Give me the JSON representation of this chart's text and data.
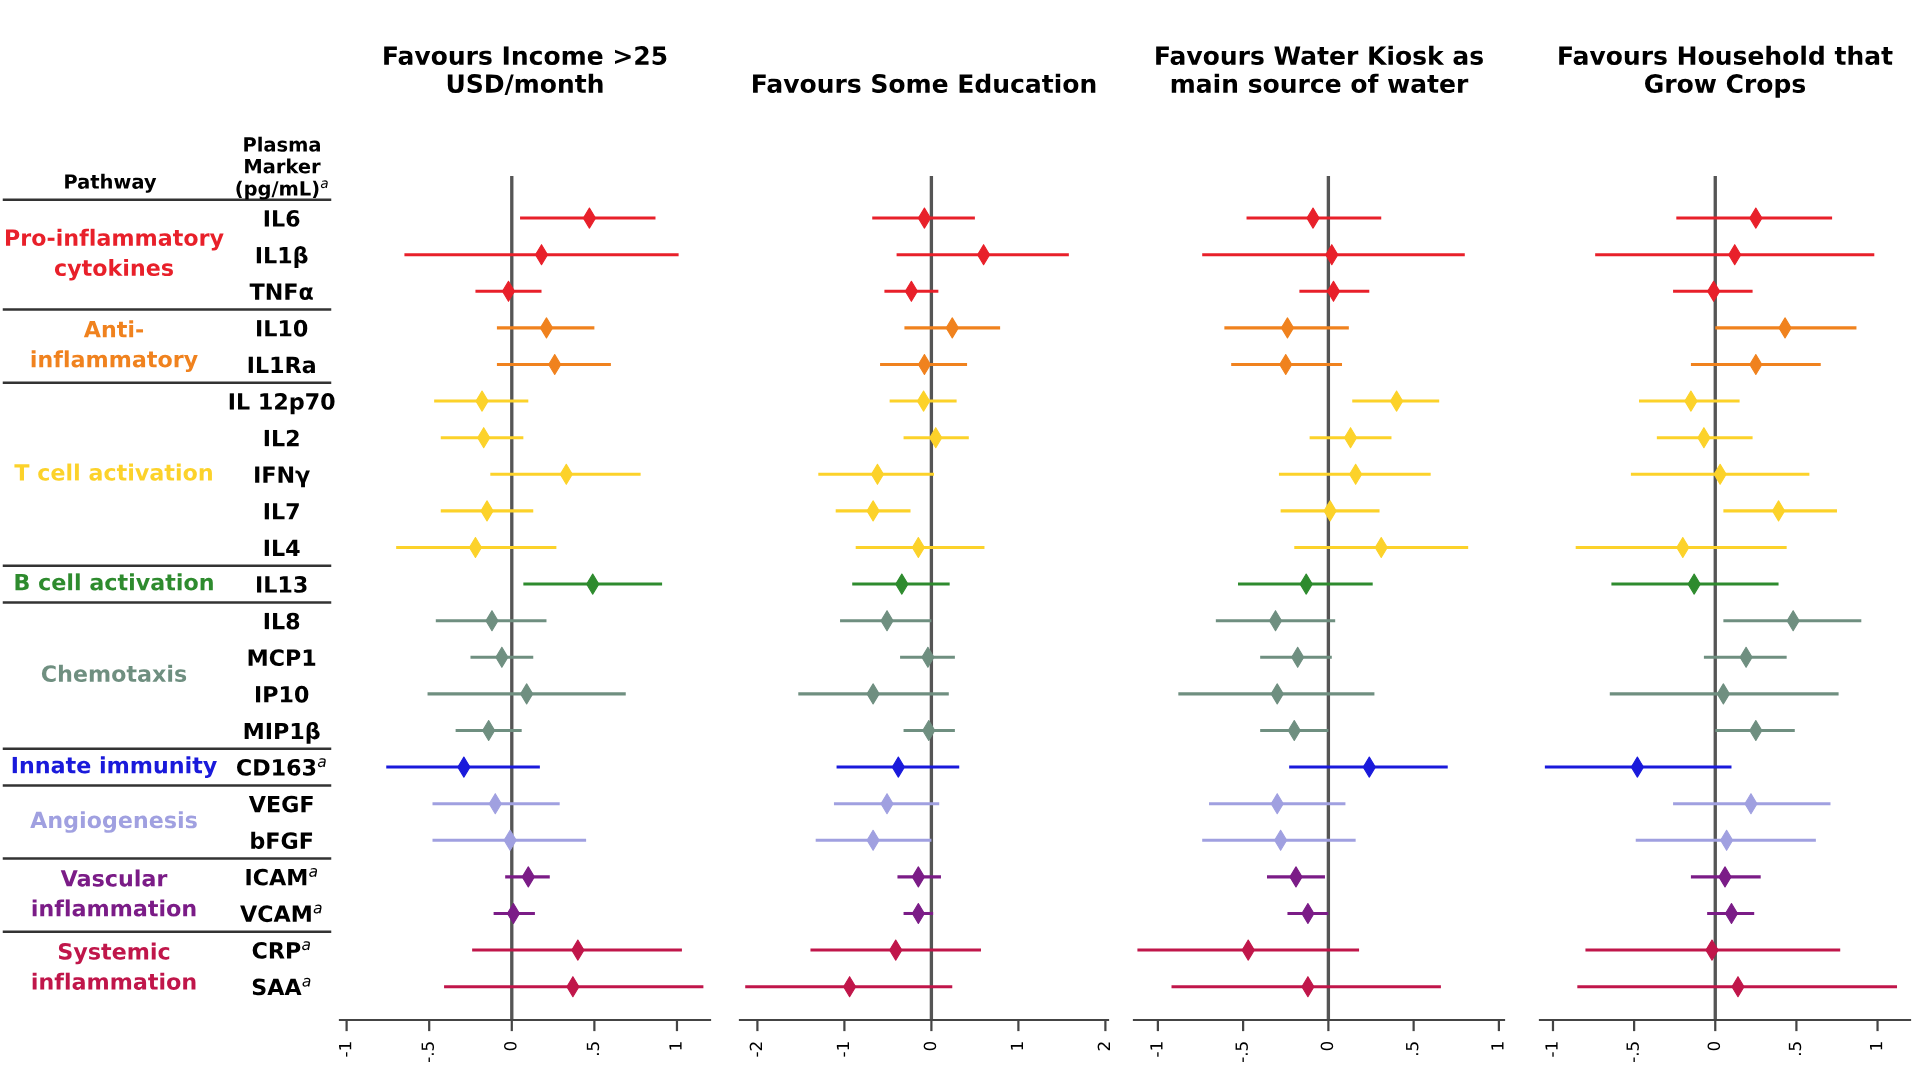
{
  "chart_data": [
    {
      "type": "scatter",
      "orientation": "horizontal",
      "title": "Favours Income >25\nUSD/month",
      "ylabel": "Plasma\nMarker\n(pg/mL)$^{a}$",
      "annotations": [
        "Pathway",
        "Pro-inflammatory\ncytokines",
        "Anti-\ninflammatory",
        "T cell activation",
        "B cell activation",
        "Chemotaxis",
        "Innate immunity",
        "Angiogenesis",
        "Vascular\ninflammation",
        "Systemic\ninflammation"
      ],
      "categories": [
        "IL6",
        "IL1β",
        "TNFα",
        "IL10",
        "IL1Ra",
        "IL 12p70",
        "IL2",
        "IFNγ",
        "IL7",
        "IL4",
        "IL13",
        "IL8",
        "MCP1",
        "IP10",
        "MIP1β",
        "CD163$^{a}$",
        "VEGF",
        "bFGF",
        "ICAM$^{a}$",
        "VCAM$^{a}$",
        "CRP$^{a}$",
        "SAA$^{a}$"
      ],
      "values": [
        0.47,
        0.18,
        -0.02,
        0.21,
        0.26,
        -0.18,
        -0.17,
        0.33,
        -0.15,
        -0.22,
        0.49,
        -0.12,
        -0.06,
        0.09,
        -0.14,
        -0.29,
        -0.1,
        -0.01,
        0.1,
        0.01,
        0.4,
        0.37
      ],
      "errors": [
        [
          0.05,
          0.87
        ],
        [
          -0.65,
          1.01
        ],
        [
          -0.22,
          0.18
        ],
        [
          -0.09,
          0.5
        ],
        [
          -0.09,
          0.6
        ],
        [
          -0.47,
          0.1
        ],
        [
          -0.43,
          0.07
        ],
        [
          -0.13,
          0.78
        ],
        [
          -0.43,
          0.13
        ],
        [
          -0.7,
          0.27
        ],
        [
          0.07,
          0.91
        ],
        [
          -0.46,
          0.21
        ],
        [
          -0.25,
          0.13
        ],
        [
          -0.51,
          0.69
        ],
        [
          -0.34,
          0.06
        ],
        [
          -0.76,
          0.17
        ],
        [
          -0.48,
          0.29
        ],
        [
          -0.48,
          0.45
        ],
        [
          -0.04,
          0.23
        ],
        [
          -0.11,
          0.14
        ],
        [
          -0.24,
          1.03
        ],
        [
          -0.41,
          1.16
        ]
      ],
      "colors": [
        "#e8202a",
        "#e8202a",
        "#e8202a",
        "#f0821e",
        "#f0821e",
        "#fcd22a",
        "#fcd22a",
        "#fcd22a",
        "#fcd22a",
        "#fcd22a",
        "#2e8b2e",
        "#6f8f80",
        "#6f8f80",
        "#6f8f80",
        "#6f8f80",
        "#1a1adb",
        "#a0a0e0",
        "#a0a0e0",
        "#7b1c87",
        "#7b1c87",
        "#c0164a",
        "#c0164a"
      ],
      "xlim": [
        -1.04,
        1.2
      ],
      "xticks": [
        {
          "value": -1,
          "label": "-1"
        },
        {
          "value": -0.5,
          "label": "-.5"
        },
        0,
        {
          "value": 0.5,
          "label": ".5"
        },
        1
      ],
      "ref_lines": [
        {
          "axis": "x",
          "value": 0
        }
      ],
      "marker": "diamond",
      "legend": false,
      "grid": false
    },
    {
      "type": "scatter",
      "orientation": "horizontal",
      "title": "Favours Some Education",
      "tick_labels": "x",
      "categories": [
        null,
        null,
        null,
        null,
        null,
        null,
        null,
        null,
        null,
        null,
        null,
        null,
        null,
        null,
        null,
        null,
        null,
        null,
        null,
        null,
        null,
        null
      ],
      "values": [
        -0.08,
        0.6,
        -0.23,
        0.24,
        -0.08,
        -0.09,
        0.05,
        -0.62,
        -0.67,
        -0.15,
        -0.34,
        -0.51,
        -0.04,
        -0.67,
        -0.03,
        -0.38,
        -0.51,
        -0.67,
        -0.15,
        -0.15,
        -0.41,
        -0.94
      ],
      "errors": [
        [
          -0.68,
          0.5
        ],
        [
          -0.4,
          1.58
        ],
        [
          -0.54,
          0.08
        ],
        [
          -0.31,
          0.79
        ],
        [
          -0.59,
          0.41
        ],
        [
          -0.48,
          0.29
        ],
        [
          -0.32,
          0.43
        ],
        [
          -1.3,
          0.03
        ],
        [
          -1.1,
          -0.24
        ],
        [
          -0.87,
          0.61
        ],
        [
          -0.91,
          0.21
        ],
        [
          -1.05,
          0.0
        ],
        [
          -0.36,
          0.27
        ],
        [
          -1.53,
          0.2
        ],
        [
          -0.32,
          0.27
        ],
        [
          -1.09,
          0.32
        ],
        [
          -1.12,
          0.09
        ],
        [
          -1.33,
          0.0
        ],
        [
          -0.39,
          0.11
        ],
        [
          -0.32,
          0.02
        ],
        [
          -1.39,
          0.57
        ],
        [
          -2.14,
          0.24
        ]
      ],
      "colors": [
        "#e8202a",
        "#e8202a",
        "#e8202a",
        "#f0821e",
        "#f0821e",
        "#fcd22a",
        "#fcd22a",
        "#fcd22a",
        "#fcd22a",
        "#fcd22a",
        "#2e8b2e",
        "#6f8f80",
        "#6f8f80",
        "#6f8f80",
        "#6f8f80",
        "#1a1adb",
        "#a0a0e0",
        "#a0a0e0",
        "#7b1c87",
        "#7b1c87",
        "#c0164a",
        "#c0164a"
      ],
      "xlim": [
        -2.2,
        2.03
      ],
      "xticks": [
        -2,
        -1,
        0,
        1,
        2
      ],
      "ref_lines": [
        {
          "axis": "x",
          "value": 0
        }
      ],
      "marker": "diamond",
      "legend": false,
      "grid": false
    },
    {
      "type": "scatter",
      "orientation": "horizontal",
      "title": "Favours Water Kiosk as\nmain source of water",
      "tick_labels": "x",
      "categories": [
        null,
        null,
        null,
        null,
        null,
        null,
        null,
        null,
        null,
        null,
        null,
        null,
        null,
        null,
        null,
        null,
        null,
        null,
        null,
        null,
        null,
        null
      ],
      "values": [
        -0.09,
        0.02,
        0.03,
        -0.24,
        -0.25,
        0.4,
        0.13,
        0.16,
        0.01,
        0.31,
        -0.13,
        -0.31,
        -0.18,
        -0.3,
        -0.2,
        0.24,
        -0.3,
        -0.28,
        -0.19,
        -0.12,
        -0.47,
        -0.12
      ],
      "errors": [
        [
          -0.48,
          0.31
        ],
        [
          -0.74,
          0.8
        ],
        [
          -0.17,
          0.24
        ],
        [
          -0.61,
          0.12
        ],
        [
          -0.57,
          0.08
        ],
        [
          0.14,
          0.65
        ],
        [
          -0.11,
          0.37
        ],
        [
          -0.29,
          0.6
        ],
        [
          -0.28,
          0.3
        ],
        [
          -0.2,
          0.82
        ],
        [
          -0.53,
          0.26
        ],
        [
          -0.66,
          0.04
        ],
        [
          -0.4,
          0.02
        ],
        [
          -0.88,
          0.27
        ],
        [
          -0.4,
          0.0
        ],
        [
          -0.23,
          0.7
        ],
        [
          -0.7,
          0.1
        ],
        [
          -0.74,
          0.16
        ],
        [
          -0.36,
          -0.02
        ],
        [
          -0.24,
          0.0
        ],
        [
          -1.12,
          0.18
        ],
        [
          -0.92,
          0.66
        ]
      ],
      "colors": [
        "#e8202a",
        "#e8202a",
        "#e8202a",
        "#f0821e",
        "#f0821e",
        "#fcd22a",
        "#fcd22a",
        "#fcd22a",
        "#fcd22a",
        "#fcd22a",
        "#2e8b2e",
        "#6f8f80",
        "#6f8f80",
        "#6f8f80",
        "#6f8f80",
        "#1a1adb",
        "#a0a0e0",
        "#a0a0e0",
        "#7b1c87",
        "#7b1c87",
        "#c0164a",
        "#c0164a"
      ],
      "xlim": [
        -1.14,
        1.03
      ],
      "xticks": [
        {
          "value": -1,
          "label": "-1"
        },
        {
          "value": -0.5,
          "label": "-.5"
        },
        0,
        {
          "value": 0.5,
          "label": ".5"
        },
        1
      ],
      "ref_lines": [
        {
          "axis": "x",
          "value": 0
        }
      ],
      "marker": "diamond",
      "legend": false,
      "grid": false
    },
    {
      "type": "scatter",
      "orientation": "horizontal",
      "title": "Favours Household that\nGrow Crops",
      "tick_labels": "x",
      "categories": [
        null,
        null,
        null,
        null,
        null,
        null,
        null,
        null,
        null,
        null,
        null,
        null,
        null,
        null,
        null,
        null,
        null,
        null,
        null,
        null,
        null,
        null
      ],
      "values": [
        0.25,
        0.12,
        -0.01,
        0.43,
        0.25,
        -0.15,
        -0.07,
        0.03,
        0.39,
        -0.2,
        -0.13,
        0.48,
        0.19,
        0.05,
        0.25,
        -0.48,
        0.22,
        0.07,
        0.06,
        0.1,
        -0.02,
        0.14
      ],
      "errors": [
        [
          -0.24,
          0.72
        ],
        [
          -0.74,
          0.98
        ],
        [
          -0.26,
          0.23
        ],
        [
          0.0,
          0.87
        ],
        [
          -0.15,
          0.65
        ],
        [
          -0.47,
          0.15
        ],
        [
          -0.36,
          0.23
        ],
        [
          -0.52,
          0.58
        ],
        [
          0.05,
          0.75
        ],
        [
          -0.86,
          0.44
        ],
        [
          -0.64,
          0.39
        ],
        [
          0.05,
          0.9
        ],
        [
          -0.07,
          0.44
        ],
        [
          -0.65,
          0.76
        ],
        [
          0.0,
          0.49
        ],
        [
          -1.05,
          0.1
        ],
        [
          -0.26,
          0.71
        ],
        [
          -0.49,
          0.62
        ],
        [
          -0.15,
          0.28
        ],
        [
          -0.05,
          0.24
        ],
        [
          -0.8,
          0.77
        ],
        [
          -0.85,
          1.12
        ]
      ],
      "colors": [
        "#e8202a",
        "#e8202a",
        "#e8202a",
        "#f0821e",
        "#f0821e",
        "#fcd22a",
        "#fcd22a",
        "#fcd22a",
        "#fcd22a",
        "#fcd22a",
        "#2e8b2e",
        "#6f8f80",
        "#6f8f80",
        "#6f8f80",
        "#6f8f80",
        "#1a1adb",
        "#a0a0e0",
        "#a0a0e0",
        "#7b1c87",
        "#7b1c87",
        "#c0164a",
        "#c0164a"
      ],
      "xlim": [
        -1.08,
        1.2
      ],
      "xticks": [
        {
          "value": -1,
          "label": "-1"
        },
        {
          "value": -0.5,
          "label": "-.5"
        },
        0,
        {
          "value": 0.5,
          "label": ".5"
        },
        1
      ],
      "ref_lines": [
        {
          "axis": "x",
          "value": 0
        }
      ],
      "marker": "diamond",
      "legend": false,
      "grid": false
    }
  ]
}
